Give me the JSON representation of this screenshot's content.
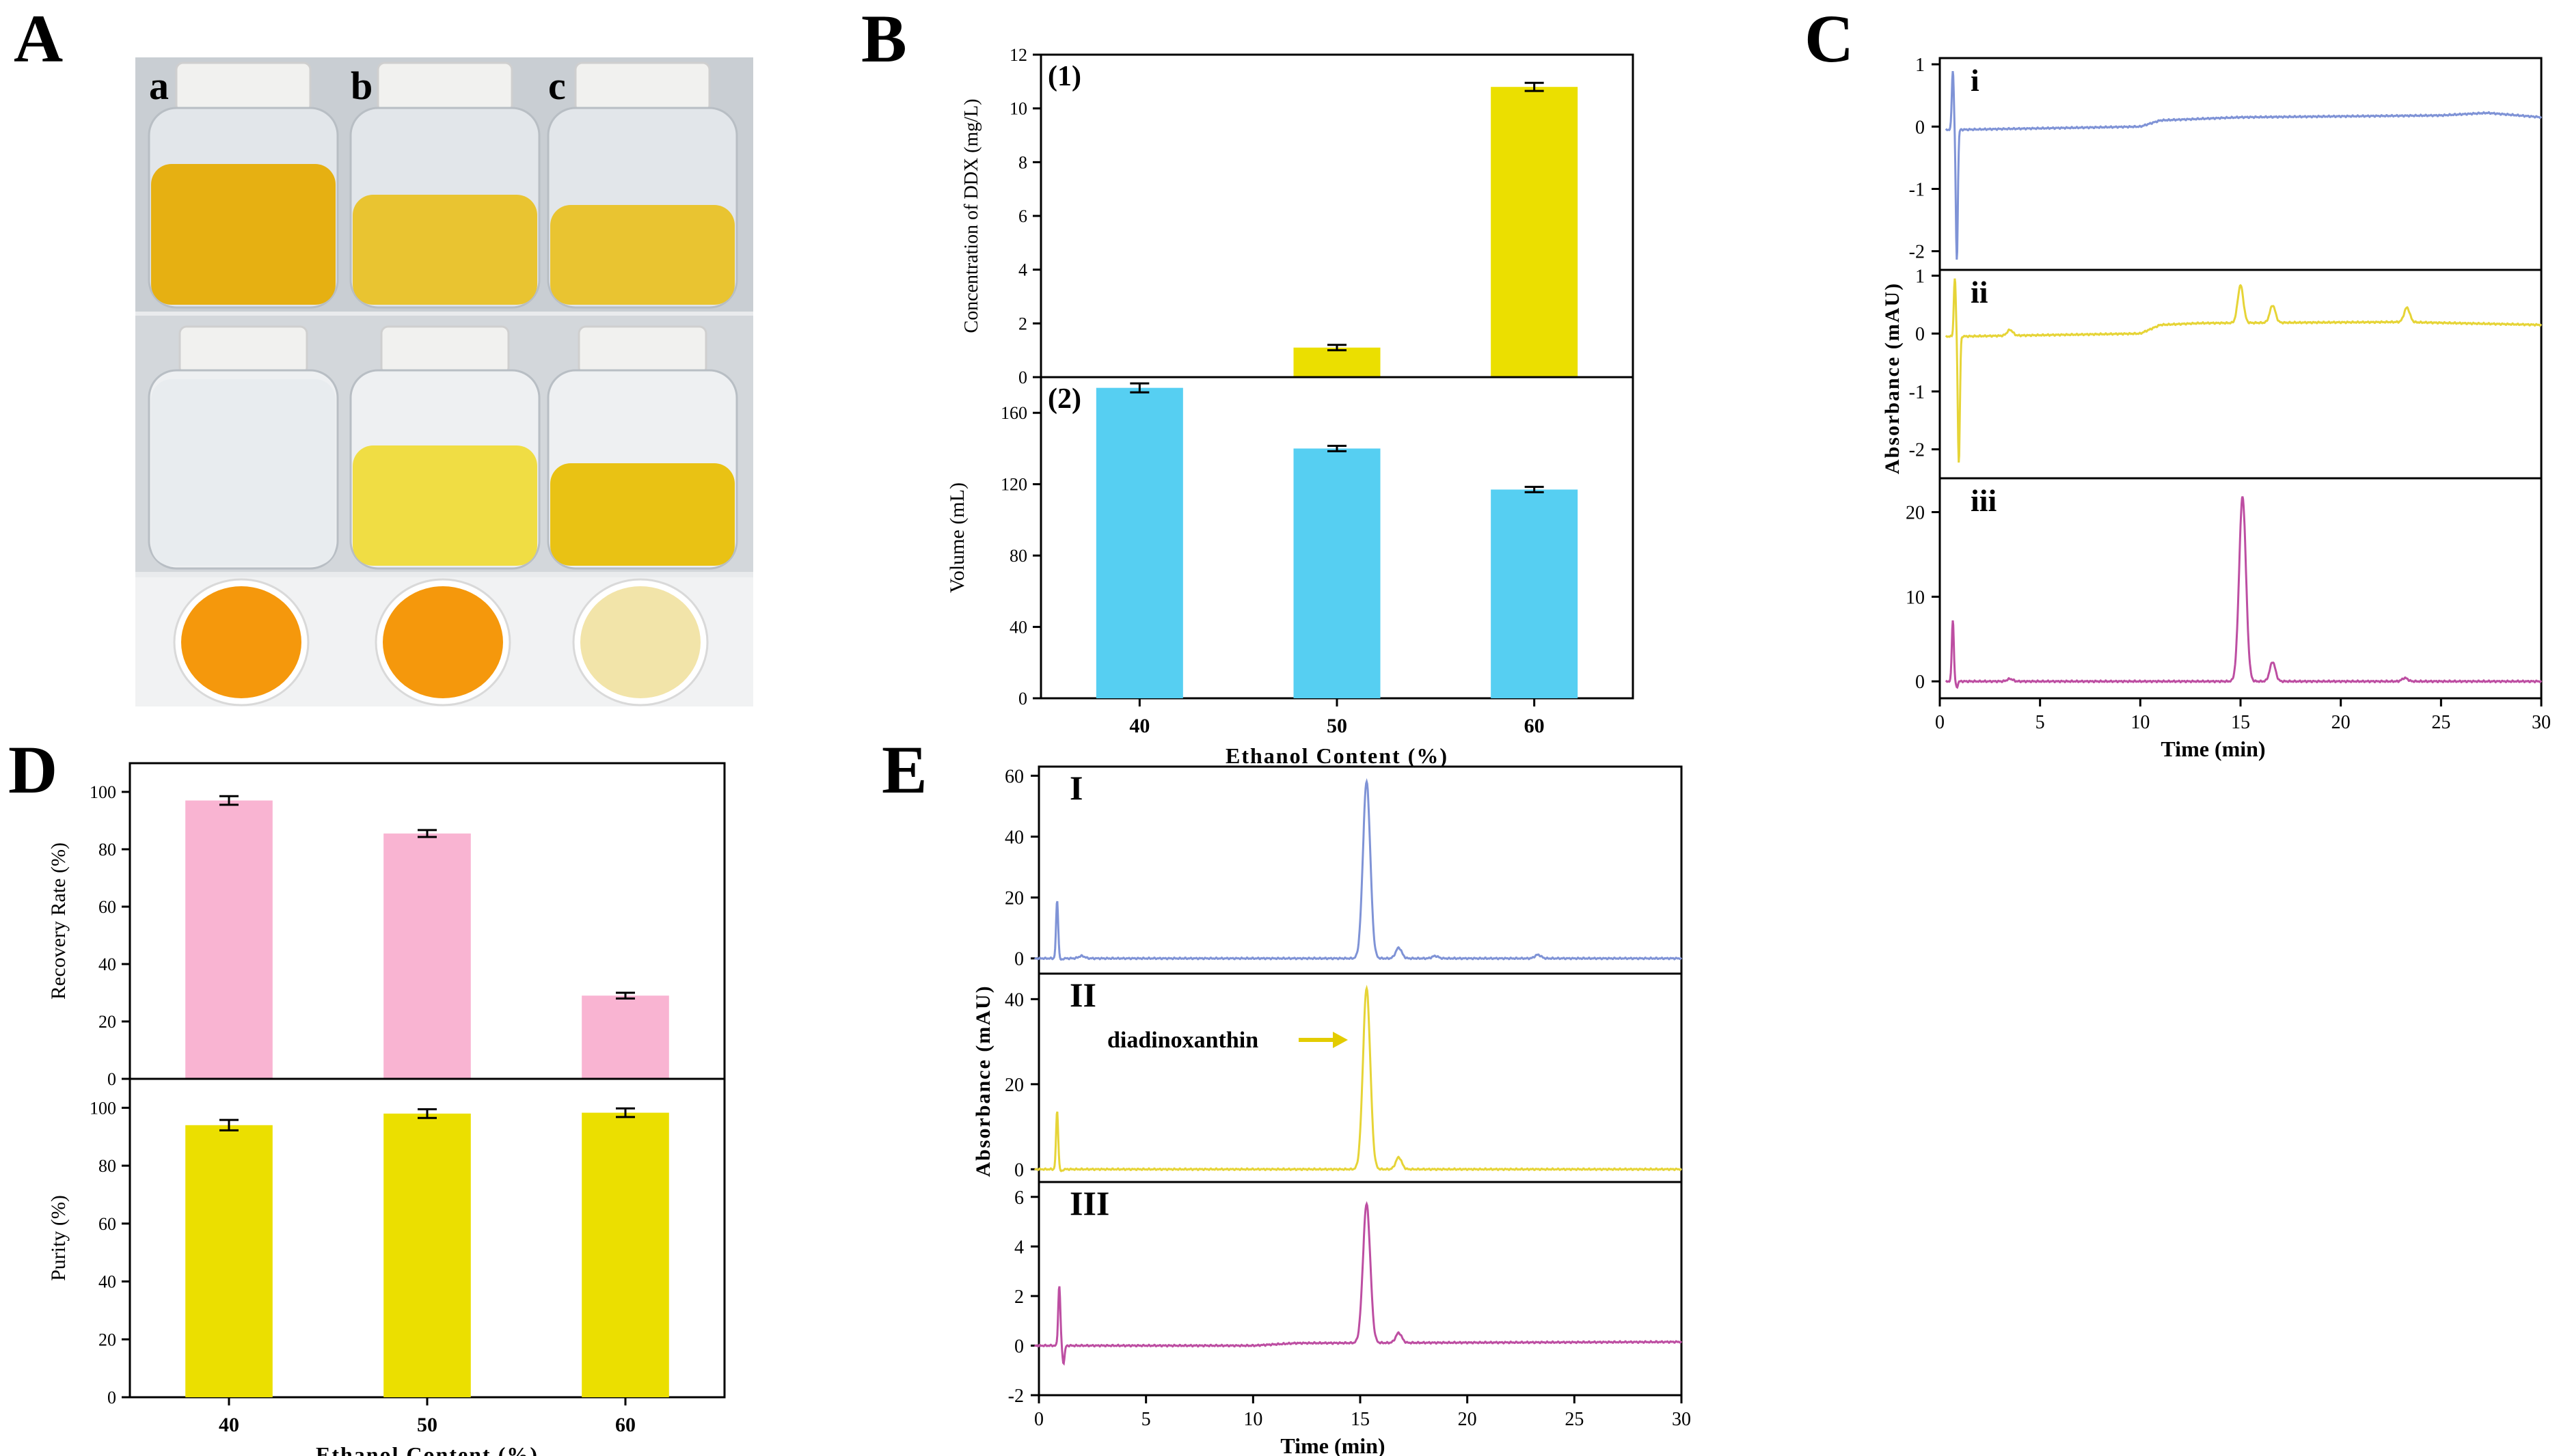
{
  "panel_letters": {
    "A": "A",
    "B": "B",
    "C": "C",
    "D": "D",
    "E": "E"
  },
  "photo": {
    "jar_labels": [
      "a",
      "b",
      "c"
    ],
    "colors": {
      "yellow_dark": "#e6b012",
      "yellow_mid": "#e9c431",
      "yellow_light": "#f0dd44",
      "orange": "#f5980c",
      "cream": "#f2e4a9",
      "cap": "#f1f1ef",
      "backdrop": "#c9ced3"
    }
  },
  "colors": {
    "yellow_bar": "#ebdf00",
    "cyan_bar": "#56cff2",
    "pink_bar": "#f9b4d2",
    "blue_line": "#7f93d6",
    "yellow_line": "#e6d437",
    "magenta_line": "#bd4ea2",
    "arrow": "#e3cc00"
  },
  "chart_data": [
    {
      "id": "B1",
      "type": "bar",
      "panel_label": "(1)",
      "categories": [
        "40",
        "50",
        "60"
      ],
      "values": [
        0,
        1.1,
        10.8
      ],
      "errors": [
        0,
        0.1,
        0.15
      ],
      "ylabel": "Concentration of DDX (mg/L)",
      "ylim": [
        0,
        12
      ],
      "yticks": [
        "0",
        "2",
        "4",
        "6",
        "8",
        "10",
        "12"
      ]
    },
    {
      "id": "B2",
      "type": "bar",
      "panel_label": "(2)",
      "categories": [
        "40",
        "50",
        "60"
      ],
      "values": [
        174,
        140,
        117
      ],
      "errors": [
        2.5,
        1.5,
        1.5
      ],
      "ylabel": "Volume (mL)",
      "ylim": [
        0,
        180
      ],
      "yticks": [
        "0",
        "40",
        "80",
        "120",
        "160"
      ],
      "xlabel": "Ethanol Content (%)",
      "xticks": [
        "40",
        "50",
        "60"
      ]
    },
    {
      "id": "C",
      "type": "line",
      "xlabel": "Time (min)",
      "ylabel": "Absorbance (mAU)",
      "xlim": [
        0,
        30
      ],
      "xticks": [
        "0",
        "5",
        "10",
        "15",
        "20",
        "25",
        "30"
      ],
      "subplots": [
        {
          "label": "i",
          "ylim": [
            -2.3,
            1.1
          ],
          "yticks": [
            "-2",
            "-1",
            "0",
            "1"
          ],
          "baseline": [
            [
              0.9,
              -0.05
            ],
            [
              10,
              0
            ],
            [
              11,
              0.1
            ],
            [
              15,
              0.15
            ],
            [
              25,
              0.18
            ],
            [
              27.3,
              0.22
            ],
            [
              30,
              0.15
            ]
          ],
          "peaks": [],
          "spike": [
            0.3,
            0.95,
            -2.1
          ]
        },
        {
          "label": "ii",
          "ylim": [
            -2.5,
            1.1
          ],
          "yticks": [
            "-2",
            "-1",
            "0",
            "1"
          ],
          "baseline": [
            [
              0.9,
              -0.05
            ],
            [
              10,
              0
            ],
            [
              11,
              0.15
            ],
            [
              13,
              0.18
            ],
            [
              23,
              0.2
            ],
            [
              30,
              0.15
            ]
          ],
          "peaks": [
            [
              3.5,
              0.1
            ],
            [
              15,
              0.65
            ],
            [
              16.6,
              0.3
            ],
            [
              23.3,
              0.25
            ]
          ],
          "spike": [
            0.4,
            0.95,
            -2.2
          ]
        },
        {
          "label": "iii",
          "ylim": [
            -2,
            24
          ],
          "yticks": [
            "0",
            "10",
            "20"
          ],
          "baseline": [
            [
              0.9,
              0
            ],
            [
              30,
              0
            ]
          ],
          "peaks": [
            [
              3.5,
              0.3
            ],
            [
              15.1,
              21.8
            ],
            [
              16.6,
              2.3
            ],
            [
              23.2,
              0.4
            ]
          ],
          "spike": [
            0.3,
            0.8,
            -0.7
          ]
        }
      ]
    },
    {
      "id": "D1",
      "type": "bar",
      "categories": [
        "40",
        "50",
        "60"
      ],
      "values": [
        97,
        85.5,
        29
      ],
      "errors": [
        1.5,
        1.2,
        1.0
      ],
      "ylabel": "Recovery Rate (%)",
      "ylim": [
        0,
        110
      ],
      "yticks": [
        "0",
        "20",
        "40",
        "60",
        "80",
        "100"
      ]
    },
    {
      "id": "D2",
      "type": "bar",
      "categories": [
        "40",
        "50",
        "60"
      ],
      "values": [
        94,
        98,
        98.3
      ],
      "errors": [
        1.8,
        1.5,
        1.5
      ],
      "ylabel": "Purity (%)",
      "ylim": [
        0,
        110
      ],
      "yticks": [
        "0",
        "20",
        "40",
        "60",
        "80",
        "100"
      ],
      "xlabel": "Ethanol Content (%)",
      "xticks": [
        "40",
        "50",
        "60"
      ]
    },
    {
      "id": "E",
      "type": "line",
      "xlabel": "Time (min)",
      "ylabel": "Absorbance (mAU)",
      "xlim": [
        0,
        30
      ],
      "xticks": [
        "0",
        "5",
        "10",
        "15",
        "20",
        "25",
        "30"
      ],
      "annotation": "diadinoxanthin",
      "subplots": [
        {
          "label": "I",
          "ylim": [
            -5,
            63
          ],
          "yticks": [
            "0",
            "20",
            "40",
            "60"
          ],
          "baseline": [
            [
              0.4,
              0
            ],
            [
              30,
              0
            ]
          ],
          "peaks": [
            [
              2,
              0.8
            ],
            [
              15.3,
              58
            ],
            [
              16.8,
              3.5
            ],
            [
              18.5,
              0.8
            ],
            [
              23.3,
              1.2
            ]
          ],
          "spike": [
            0.5,
            0.7,
            -0.5
          ]
        },
        {
          "label": "II",
          "ylim": [
            -3,
            46
          ],
          "yticks": [
            "0",
            "20",
            "40"
          ],
          "baseline": [
            [
              0.4,
              0
            ],
            [
              30,
              0
            ]
          ],
          "peaks": [
            [
              15.3,
              42.5
            ],
            [
              16.8,
              2.8
            ]
          ],
          "spike": [
            0.5,
            0.6,
            -0.5
          ]
        },
        {
          "label": "III",
          "ylim": [
            -2,
            6.6
          ],
          "yticks": [
            "-2",
            "0",
            "2",
            "4",
            "6"
          ],
          "baseline": [
            [
              0.4,
              0
            ],
            [
              10,
              0
            ],
            [
              12,
              0.1
            ],
            [
              30,
              0.15
            ]
          ],
          "peaks": [
            [
              15.3,
              5.6
            ],
            [
              16.8,
              0.4
            ]
          ],
          "spike": [
            0.6,
            0.8,
            -0.7
          ]
        }
      ]
    }
  ]
}
